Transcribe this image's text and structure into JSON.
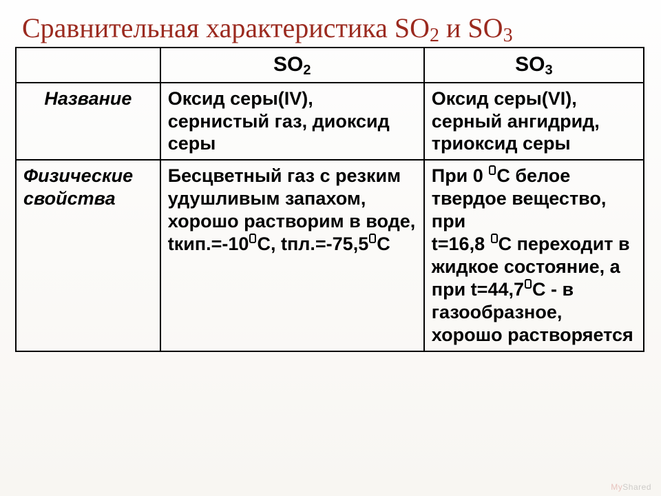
{
  "title_parts": {
    "prefix": "Сравнительная характеристика SO",
    "sub1": "2",
    "mid": " и SO",
    "sub2": "3"
  },
  "headers": {
    "col1": "",
    "col2_main": "SO",
    "col2_sub": "2",
    "col3_main": "SO",
    "col3_sub": "3"
  },
  "row_name": {
    "label": "Название",
    "so2": "Оксид серы(IV), сернистый газ, диоксид серы",
    "so3": "Оксид серы(VI), серный ангидрид, триоксид серы"
  },
  "row_phys": {
    "label": "Физические свойства",
    "so2_a": "Бесцветный газ с резким удушливым запахом, хорошо растворим в воде, tкип.=-10",
    "so2_b": "С, tпл.=-75,5",
    "so2_c": "С",
    "so3_a": "При 0 ",
    "so3_b": "С белое твердое вещество, при",
    "so3_c": "t=16,8 ",
    "so3_d": "С переходит в жидкое состояние, а при t=44,7",
    "so3_e": "С - в газообразное, хорошо растворяется"
  },
  "watermark": {
    "a": "My",
    "b": "Shared"
  },
  "colors": {
    "title": "#9b2a1f",
    "border": "#000000",
    "text": "#000000",
    "bg_top": "#fefefe",
    "bg_bottom": "#f8f6f2"
  }
}
